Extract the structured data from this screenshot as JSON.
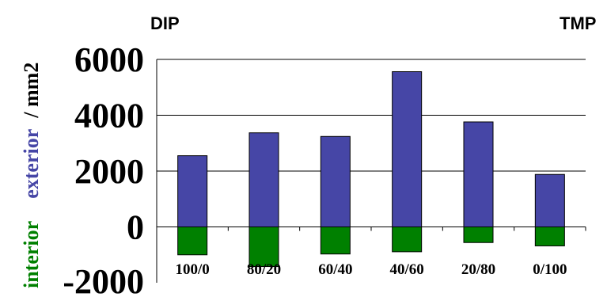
{
  "chart_data": {
    "type": "bar",
    "title": "",
    "left_corner_label": "DIP",
    "right_corner_label": "TMP",
    "categories": [
      "100/0",
      "80/20",
      "60/40",
      "40/60",
      "20/80",
      "0/100"
    ],
    "series": [
      {
        "name": "exterior",
        "color": "#4646A6",
        "values": [
          2550,
          3370,
          3240,
          5560,
          3760,
          1880
        ]
      },
      {
        "name": "interior",
        "color": "#008000",
        "values": [
          -1000,
          -1420,
          -970,
          -890,
          -560,
          -680
        ]
      }
    ],
    "ylabel_parts": [
      {
        "text": "interior",
        "color": "#008000"
      },
      {
        "text": "exterior",
        "color": "#4646A6"
      },
      {
        "text": "/ mm2",
        "color": "#000000"
      }
    ],
    "yticks": [
      "-2000",
      "0",
      "2000",
      "4000",
      "6000"
    ],
    "ytick_values": [
      -2000,
      0,
      2000,
      4000,
      6000
    ],
    "ylim": [
      -2000,
      6000
    ],
    "grid": true,
    "legend": "none",
    "stacked_sign": true
  }
}
